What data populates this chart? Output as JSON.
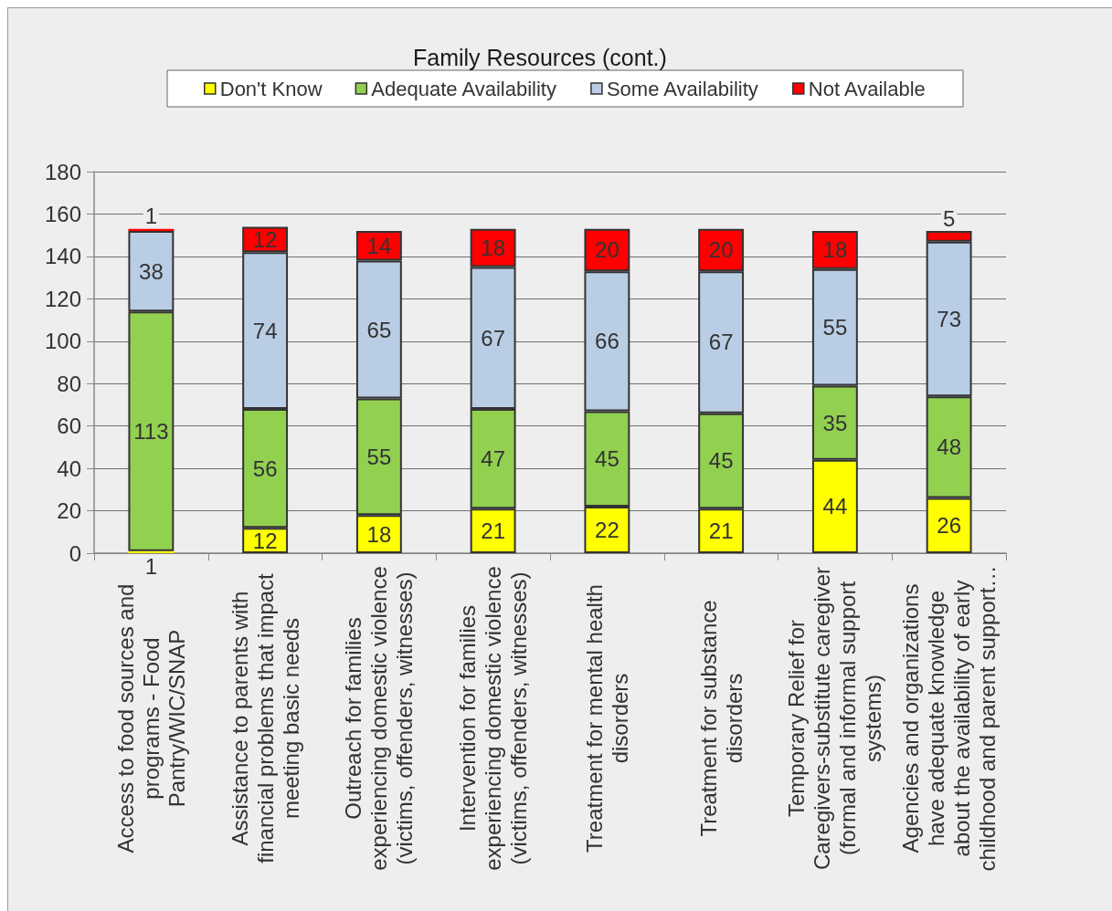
{
  "chart_data": {
    "type": "bar",
    "stacked": true,
    "title": "Family Resources (cont.)",
    "categories": [
      "Access to food sources and programs - Food Pantry/WIC/SNAP",
      "Assistance to parents with financial problems that impact meeting basic needs",
      "Outreach for families experiencing domestic violence (victims, offenders, witnesses)",
      "Intervention for families experiencing domestic violence (victims, offenders, witnesses)",
      "Treatment for mental health disorders",
      "Treatment for substance disorders",
      "Temporary Relief for Caregivers-substitute caregiver (formal and informal support systems)",
      "Agencies and organizations have adequate knowledge about the availability of early childhood and parent support…"
    ],
    "series": [
      {
        "name": "Don't Know",
        "color": "#ffff00",
        "values": [
          1,
          12,
          18,
          21,
          22,
          21,
          44,
          26
        ]
      },
      {
        "name": "Adequate Availability",
        "color": "#92d050",
        "values": [
          113,
          56,
          55,
          47,
          45,
          45,
          35,
          48
        ]
      },
      {
        "name": "Some Availability",
        "color": "#b9cde5",
        "values": [
          38,
          74,
          65,
          67,
          66,
          67,
          55,
          73
        ]
      },
      {
        "name": "Not Available",
        "color": "#ff0000",
        "values": [
          1,
          12,
          14,
          18,
          20,
          20,
          18,
          5
        ]
      }
    ],
    "ylim": [
      0,
      180
    ],
    "yticks": [
      0,
      20,
      40,
      60,
      80,
      100,
      120,
      140,
      160,
      180
    ],
    "grid": "y",
    "legend": "top",
    "data_labels": true
  }
}
